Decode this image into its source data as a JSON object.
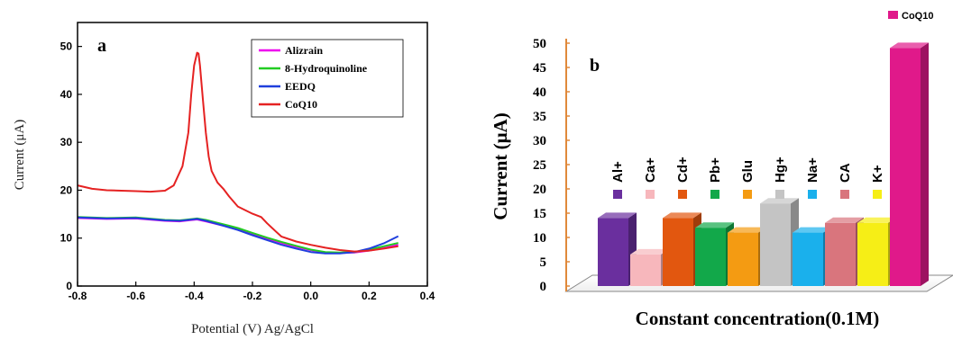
{
  "chart_data": [
    {
      "type": "line",
      "panel_label": "a",
      "xlabel": "Potential (V) Ag/AgCl",
      "ylabel": "Current (μA)",
      "xlim": [
        -0.8,
        0.4
      ],
      "ylim": [
        0,
        55
      ],
      "xticks": [
        -0.8,
        -0.6,
        -0.4,
        -0.2,
        0.0,
        0.2,
        0.4
      ],
      "xtick_labels": [
        "-0.8",
        "-0.6",
        "-0.4",
        "-0.2",
        "0.0",
        "0.2",
        "0.4"
      ],
      "yticks": [
        0,
        10,
        20,
        30,
        40,
        50
      ],
      "ytick_labels": [
        "0",
        "10",
        "20",
        "30",
        "40",
        "50"
      ],
      "legend_position": "top-right",
      "series": [
        {
          "name": "Alizrain",
          "color": "#ee00ee",
          "x": [
            -0.8,
            -0.7,
            -0.6,
            -0.5,
            -0.45,
            -0.42,
            -0.39,
            -0.36,
            -0.3,
            -0.25,
            -0.2,
            -0.15,
            -0.1,
            -0.05,
            0.0,
            0.05,
            0.1,
            0.15,
            0.2,
            0.25,
            0.3
          ],
          "y": [
            14.2,
            14.0,
            14.1,
            13.6,
            13.5,
            13.7,
            13.9,
            13.5,
            12.6,
            11.8,
            10.8,
            9.9,
            9.0,
            8.2,
            7.5,
            7.0,
            6.9,
            7.0,
            7.4,
            7.9,
            8.6
          ]
        },
        {
          "name": "8-Hydroquinoline",
          "color": "#22cc22",
          "x": [
            -0.8,
            -0.7,
            -0.6,
            -0.5,
            -0.45,
            -0.42,
            -0.39,
            -0.36,
            -0.3,
            -0.25,
            -0.2,
            -0.15,
            -0.1,
            -0.05,
            0.0,
            0.05,
            0.1,
            0.15,
            0.2,
            0.25,
            0.3
          ],
          "y": [
            14.4,
            14.2,
            14.3,
            13.8,
            13.7,
            13.9,
            14.1,
            13.8,
            12.9,
            12.1,
            11.1,
            10.1,
            9.2,
            8.4,
            7.6,
            7.1,
            7.0,
            7.1,
            7.6,
            8.3,
            9.0
          ]
        },
        {
          "name": "EEDQ",
          "color": "#1f3fdd",
          "x": [
            -0.8,
            -0.7,
            -0.6,
            -0.5,
            -0.45,
            -0.42,
            -0.39,
            -0.36,
            -0.3,
            -0.25,
            -0.2,
            -0.15,
            -0.1,
            -0.05,
            0.0,
            0.05,
            0.1,
            0.15,
            0.2,
            0.25,
            0.3
          ],
          "y": [
            14.3,
            14.1,
            14.2,
            13.7,
            13.6,
            13.8,
            14.0,
            13.6,
            12.6,
            11.7,
            10.6,
            9.6,
            8.6,
            7.8,
            7.1,
            6.8,
            6.8,
            7.1,
            7.8,
            8.9,
            10.4
          ]
        },
        {
          "name": "CoQ10",
          "color": "#e52222",
          "x": [
            -0.8,
            -0.75,
            -0.7,
            -0.65,
            -0.6,
            -0.55,
            -0.5,
            -0.47,
            -0.44,
            -0.42,
            -0.41,
            -0.4,
            -0.39,
            -0.385,
            -0.38,
            -0.37,
            -0.36,
            -0.35,
            -0.34,
            -0.32,
            -0.3,
            -0.28,
            -0.25,
            -0.2,
            -0.17,
            -0.15,
            -0.12,
            -0.1,
            -0.05,
            0.0,
            0.05,
            0.1,
            0.15,
            0.2,
            0.25,
            0.3
          ],
          "y": [
            21.0,
            20.3,
            20.0,
            19.9,
            19.8,
            19.7,
            19.9,
            21.0,
            25.0,
            32.0,
            40.0,
            46.0,
            48.7,
            48.5,
            46.0,
            39.0,
            32.0,
            27.0,
            24.0,
            21.6,
            20.3,
            18.7,
            16.6,
            15.1,
            14.4,
            13.1,
            11.4,
            10.3,
            9.3,
            8.6,
            8.0,
            7.5,
            7.2,
            7.4,
            7.8,
            8.3
          ]
        }
      ]
    },
    {
      "type": "bar",
      "panel_label": "b",
      "xlabel": "Constant concentration(0.1M)",
      "ylabel": "Current (μA)",
      "ylim": [
        0,
        50
      ],
      "yticks": [
        0,
        5,
        10,
        15,
        20,
        25,
        30,
        35,
        40,
        45,
        50
      ],
      "ytick_labels": [
        "0",
        "5",
        "10",
        "15",
        "20",
        "25",
        "30",
        "35",
        "40",
        "45",
        "50"
      ],
      "legend_position": "top-right",
      "categories": [
        "Al+",
        "Ca+",
        "Cd+",
        "Pb+",
        "Glu",
        "Hg+",
        "Na+",
        "CA",
        "K+",
        "CoQ10"
      ],
      "values": [
        14.0,
        6.5,
        14.0,
        12.0,
        11.0,
        17.0,
        11.0,
        13.0,
        13.0,
        49.0
      ],
      "colors": [
        "#6a2f9e",
        "#f7b7bc",
        "#e2570f",
        "#12a84a",
        "#f49b12",
        "#c4c4c4",
        "#1ab0ec",
        "#d9757d",
        "#f6ee16",
        "#e0198a"
      ]
    }
  ]
}
